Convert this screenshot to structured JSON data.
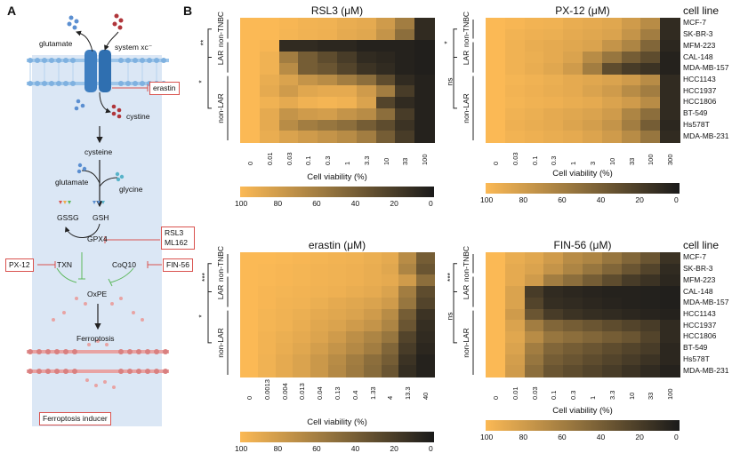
{
  "figure": {
    "panel_a": "A",
    "panel_b": "B"
  },
  "diagram": {
    "glutamate_out": "glutamate",
    "system_xc": "system xc⁻",
    "cystine": "cystine",
    "cysteine": "cysteine",
    "glutamate_in": "glutamate",
    "glycine": "glycine",
    "gssg": "GSSG",
    "gsh": "GSH",
    "gpx4": "GPX4",
    "txn": "TXN",
    "coq10": "CoQ10",
    "oxpe": "OxPE",
    "ferroptosis": "Ferroptosis",
    "inducers": {
      "erastin": "erastin",
      "rsl3": "RSL3",
      "ml162": "ML162",
      "px12": "PX-12",
      "fin56": "FIN-56"
    },
    "legend": "Ferroptosis inducer",
    "colors": {
      "bg": "#dbe7f5",
      "membrane": "#9ec6ea",
      "inducer_border": "#d9534f",
      "inhibit_line": "#5cb85c"
    }
  },
  "cell_lines": [
    "MCF-7",
    "SK-BR-3",
    "MFM-223",
    "CAL-148",
    "MDA-MB-157",
    "HCC1143",
    "HCC1937",
    "HCC1806",
    "BT-549",
    "Hs578T",
    "MDA-MB-231"
  ],
  "groups": {
    "non_tnbc": "non-\nTNBC",
    "lar": "LAR",
    "non_lar": "non-LAR",
    "cell_line_title": "cell line"
  },
  "colorbar": {
    "label": "Cell viability (%)",
    "ticks_rsl3": [
      "100",
      "80",
      "60",
      "40",
      "20",
      "0"
    ],
    "ticks_px12": [
      "100",
      "80",
      "60",
      "40",
      "20",
      "0"
    ],
    "ticks_erastin": [
      "100",
      "80",
      "60",
      "40",
      "20",
      "0"
    ],
    "ticks_fin56": [
      "100",
      "80",
      "60",
      "40",
      "20",
      "0"
    ],
    "color_high": "#fbb955",
    "color_low": "#1a1a1a"
  },
  "chart_data": [
    {
      "type": "heatmap",
      "title": "RSL3 (μM)",
      "x": [
        "0",
        "0.01",
        "0.03",
        "0.1",
        "0.3",
        "1",
        "3.3",
        "10",
        "33",
        "100"
      ],
      "y": [
        "MCF-7",
        "SK-BR-3",
        "MFM-223",
        "CAL-148",
        "MDA-MB-157",
        "HCC1143",
        "HCC1937",
        "HCC1806",
        "BT-549",
        "Hs578T",
        "MDA-MB-231"
      ],
      "zlabel": "Cell viability (%)",
      "zlim": [
        0,
        100
      ],
      "significance": [
        {
          "label": "**",
          "between": "non-TNBC vs LAR"
        },
        {
          "label": "*",
          "between": "LAR vs non-LAR"
        }
      ],
      "values": [
        [
          100,
          100,
          98,
          96,
          95,
          92,
          90,
          80,
          60,
          10
        ],
        [
          100,
          100,
          97,
          95,
          94,
          90,
          88,
          75,
          50,
          10
        ],
        [
          100,
          98,
          10,
          10,
          8,
          8,
          5,
          5,
          5,
          3
        ],
        [
          100,
          95,
          60,
          40,
          30,
          20,
          10,
          8,
          5,
          3
        ],
        [
          100,
          95,
          70,
          40,
          35,
          25,
          15,
          10,
          5,
          3
        ],
        [
          100,
          92,
          85,
          75,
          70,
          60,
          50,
          30,
          10,
          5
        ],
        [
          100,
          90,
          80,
          88,
          90,
          90,
          80,
          60,
          20,
          5
        ],
        [
          100,
          95,
          90,
          95,
          97,
          95,
          85,
          25,
          10,
          5
        ],
        [
          100,
          90,
          75,
          80,
          82,
          75,
          70,
          50,
          20,
          5
        ],
        [
          100,
          90,
          70,
          60,
          55,
          50,
          40,
          30,
          15,
          5
        ],
        [
          100,
          92,
          85,
          80,
          75,
          70,
          60,
          40,
          20,
          5
        ]
      ]
    },
    {
      "type": "heatmap",
      "title": "PX-12 (μM)",
      "x": [
        "0",
        "0.03",
        "0.1",
        "0.3",
        "1",
        "3",
        "10",
        "33",
        "100",
        "300"
      ],
      "y": [
        "MCF-7",
        "SK-BR-3",
        "MFM-223",
        "CAL-148",
        "MDA-MB-157",
        "HCC1143",
        "HCC1937",
        "HCC1806",
        "BT-549",
        "Hs578T",
        "MDA-MB-231"
      ],
      "zlabel": "Cell viability (%)",
      "zlim": [
        0,
        100
      ],
      "significance": [
        {
          "label": "*",
          "between": "non-TNBC vs LAR"
        },
        {
          "label": "ns",
          "between": "LAR vs non-LAR"
        }
      ],
      "values": [
        [
          100,
          98,
          96,
          95,
          92,
          90,
          88,
          80,
          70,
          10
        ],
        [
          100,
          96,
          94,
          93,
          90,
          88,
          85,
          75,
          60,
          10
        ],
        [
          100,
          95,
          92,
          90,
          88,
          85,
          75,
          65,
          45,
          8
        ],
        [
          100,
          95,
          93,
          90,
          85,
          70,
          55,
          40,
          30,
          5
        ],
        [
          100,
          95,
          92,
          88,
          80,
          60,
          30,
          20,
          15,
          5
        ],
        [
          100,
          97,
          95,
          93,
          90,
          88,
          85,
          80,
          70,
          10
        ],
        [
          100,
          96,
          94,
          92,
          90,
          85,
          80,
          70,
          60,
          10
        ],
        [
          100,
          97,
          95,
          94,
          92,
          90,
          85,
          80,
          70,
          10
        ],
        [
          100,
          95,
          93,
          90,
          88,
          85,
          80,
          65,
          50,
          10
        ],
        [
          100,
          94,
          92,
          90,
          86,
          82,
          75,
          60,
          40,
          8
        ],
        [
          100,
          96,
          94,
          92,
          90,
          86,
          80,
          70,
          55,
          10
        ]
      ]
    },
    {
      "type": "heatmap",
      "title": "erastin (μM)",
      "x": [
        "0",
        "0.0013",
        "0.004",
        "0.013",
        "0.04",
        "0.13",
        "0.4",
        "1.33",
        "4",
        "13.3",
        "40"
      ],
      "y": [
        "MCF-7",
        "SK-BR-3",
        "MFM-223",
        "CAL-148",
        "MDA-MB-157",
        "HCC1143",
        "HCC1937",
        "HCC1806",
        "BT-549",
        "Hs578T",
        "MDA-MB-231"
      ],
      "zlabel": "Cell viability (%)",
      "zlim": [
        0,
        100
      ],
      "significance": [
        {
          "label": "***",
          "between": "non-TNBC vs LAR"
        },
        {
          "label": "*",
          "between": "LAR vs non-LAR"
        }
      ],
      "values": [
        [
          100,
          100,
          99,
          98,
          97,
          96,
          95,
          93,
          90,
          70,
          40
        ],
        [
          100,
          99,
          98,
          97,
          96,
          95,
          94,
          92,
          88,
          65,
          35
        ],
        [
          100,
          99,
          98,
          97,
          96,
          95,
          94,
          92,
          90,
          80,
          50
        ],
        [
          100,
          98,
          97,
          96,
          95,
          94,
          92,
          90,
          85,
          60,
          30
        ],
        [
          100,
          98,
          96,
          95,
          93,
          90,
          88,
          85,
          80,
          55,
          25
        ],
        [
          100,
          97,
          95,
          93,
          90,
          88,
          85,
          80,
          70,
          40,
          15
        ],
        [
          100,
          97,
          95,
          92,
          88,
          85,
          80,
          75,
          65,
          35,
          12
        ],
        [
          100,
          96,
          93,
          90,
          86,
          80,
          72,
          65,
          55,
          25,
          10
        ],
        [
          100,
          96,
          92,
          88,
          82,
          75,
          68,
          60,
          45,
          20,
          8
        ],
        [
          100,
          95,
          90,
          85,
          78,
          70,
          60,
          50,
          40,
          15,
          5
        ],
        [
          100,
          95,
          90,
          85,
          78,
          68,
          58,
          48,
          35,
          12,
          5
        ]
      ]
    },
    {
      "type": "heatmap",
      "title": "FIN-56 (μM)",
      "x": [
        "0",
        "0.01",
        "0.03",
        "0.1",
        "0.3",
        "1",
        "3.3",
        "10",
        "33",
        "100"
      ],
      "y": [
        "MCF-7",
        "SK-BR-3",
        "MFM-223",
        "CAL-148",
        "MDA-MB-157",
        "HCC1143",
        "HCC1937",
        "HCC1806",
        "BT-549",
        "Hs578T",
        "MDA-MB-231"
      ],
      "zlabel": "Cell viability (%)",
      "zlim": [
        0,
        100
      ],
      "significance": [
        {
          "label": "***",
          "between": "non-TNBC vs LAR"
        },
        {
          "label": "ns",
          "between": "LAR vs non-LAR"
        }
      ],
      "values": [
        [
          100,
          92,
          88,
          80,
          70,
          65,
          55,
          45,
          35,
          15
        ],
        [
          100,
          90,
          85,
          75,
          65,
          55,
          45,
          35,
          25,
          10
        ],
        [
          100,
          90,
          80,
          60,
          50,
          40,
          30,
          20,
          15,
          8
        ],
        [
          100,
          85,
          20,
          10,
          8,
          6,
          5,
          5,
          4,
          3
        ],
        [
          100,
          85,
          25,
          12,
          10,
          8,
          6,
          5,
          4,
          3
        ],
        [
          100,
          80,
          35,
          20,
          15,
          12,
          10,
          8,
          6,
          5
        ],
        [
          100,
          85,
          60,
          45,
          40,
          35,
          30,
          25,
          20,
          10
        ],
        [
          100,
          88,
          70,
          55,
          50,
          45,
          40,
          35,
          25,
          10
        ],
        [
          100,
          85,
          60,
          45,
          40,
          35,
          30,
          25,
          20,
          8
        ],
        [
          100,
          82,
          55,
          40,
          35,
          30,
          25,
          20,
          15,
          8
        ],
        [
          100,
          80,
          50,
          35,
          30,
          25,
          20,
          15,
          10,
          5
        ]
      ]
    }
  ]
}
